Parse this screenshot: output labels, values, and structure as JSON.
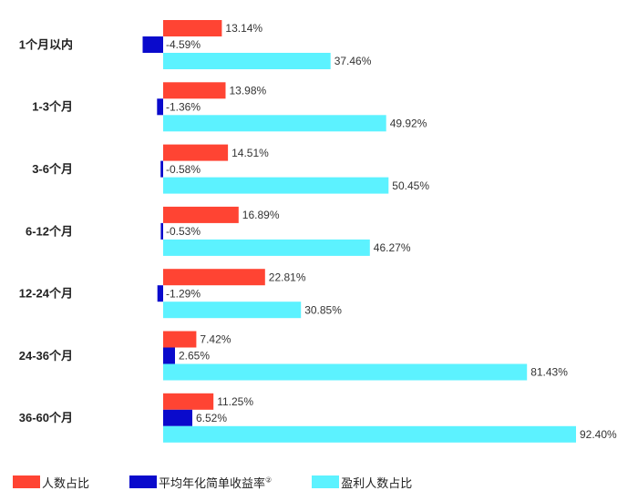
{
  "chart_data": {
    "type": "bar",
    "orientation": "horizontal",
    "categories": [
      "1个月以内",
      "1-3个月",
      "3-6个月",
      "6-12个月",
      "12-24个月",
      "24-36个月",
      "36-60个月"
    ],
    "series": [
      {
        "name": "人数占比",
        "color": "#ff4433",
        "values": [
          13.14,
          13.98,
          14.51,
          16.89,
          22.81,
          7.42,
          11.25
        ],
        "labels": [
          "13.14%",
          "13.98%",
          "14.51%",
          "16.89%",
          "22.81%",
          "7.42%",
          "11.25%"
        ]
      },
      {
        "name": "平均年化简单收益率",
        "name_superscript": "②",
        "color": "#0a0acc",
        "values": [
          -4.59,
          -1.36,
          -0.58,
          -0.53,
          -1.29,
          2.65,
          6.52
        ],
        "labels": [
          "-4.59%",
          "-1.36%",
          "-0.58%",
          "-0.53%",
          "-1.29%",
          "2.65%",
          "6.52%"
        ]
      },
      {
        "name": "盈利人数占比",
        "color": "#5cf2ff",
        "values": [
          37.46,
          49.92,
          50.45,
          46.27,
          30.85,
          81.43,
          92.4
        ],
        "labels": [
          "37.46%",
          "49.92%",
          "50.45%",
          "46.27%",
          "30.85%",
          "81.43%",
          "92.40%"
        ]
      }
    ],
    "xlim": [
      -6,
      100
    ],
    "grid": false,
    "legend_position": "bottom"
  }
}
